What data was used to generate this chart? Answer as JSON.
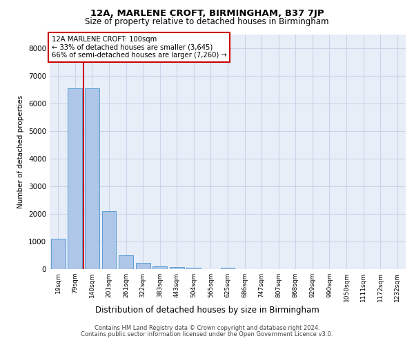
{
  "title": "12A, MARLENE CROFT, BIRMINGHAM, B37 7JP",
  "subtitle": "Size of property relative to detached houses in Birmingham",
  "xlabel": "Distribution of detached houses by size in Birmingham",
  "ylabel": "Number of detached properties",
  "footer_line1": "Contains HM Land Registry data © Crown copyright and database right 2024.",
  "footer_line2": "Contains public sector information licensed under the Open Government Licence v3.0.",
  "annotation_line1": "12A MARLENE CROFT: 100sqm",
  "annotation_line2": "← 33% of detached houses are smaller (3,645)",
  "annotation_line3": "66% of semi-detached houses are larger (7,260) →",
  "bar_color": "#aec6e8",
  "bar_edge_color": "#5a9fd4",
  "redline_color": "#cc0000",
  "grid_color": "#c8d4e8",
  "bg_color": "#e8eef8",
  "categories": [
    "19sqm",
    "79sqm",
    "140sqm",
    "201sqm",
    "261sqm",
    "322sqm",
    "383sqm",
    "443sqm",
    "504sqm",
    "565sqm",
    "625sqm",
    "686sqm",
    "747sqm",
    "807sqm",
    "868sqm",
    "929sqm",
    "990sqm",
    "1050sqm",
    "1111sqm",
    "1172sqm",
    "1232sqm"
  ],
  "values": [
    1100,
    6550,
    6550,
    2100,
    500,
    220,
    110,
    65,
    50,
    10,
    55,
    0,
    0,
    0,
    0,
    0,
    0,
    0,
    0,
    0,
    0
  ],
  "red_line_x": 1.5,
  "ylim": [
    0,
    8500
  ],
  "yticks": [
    0,
    1000,
    2000,
    3000,
    4000,
    5000,
    6000,
    7000,
    8000
  ]
}
